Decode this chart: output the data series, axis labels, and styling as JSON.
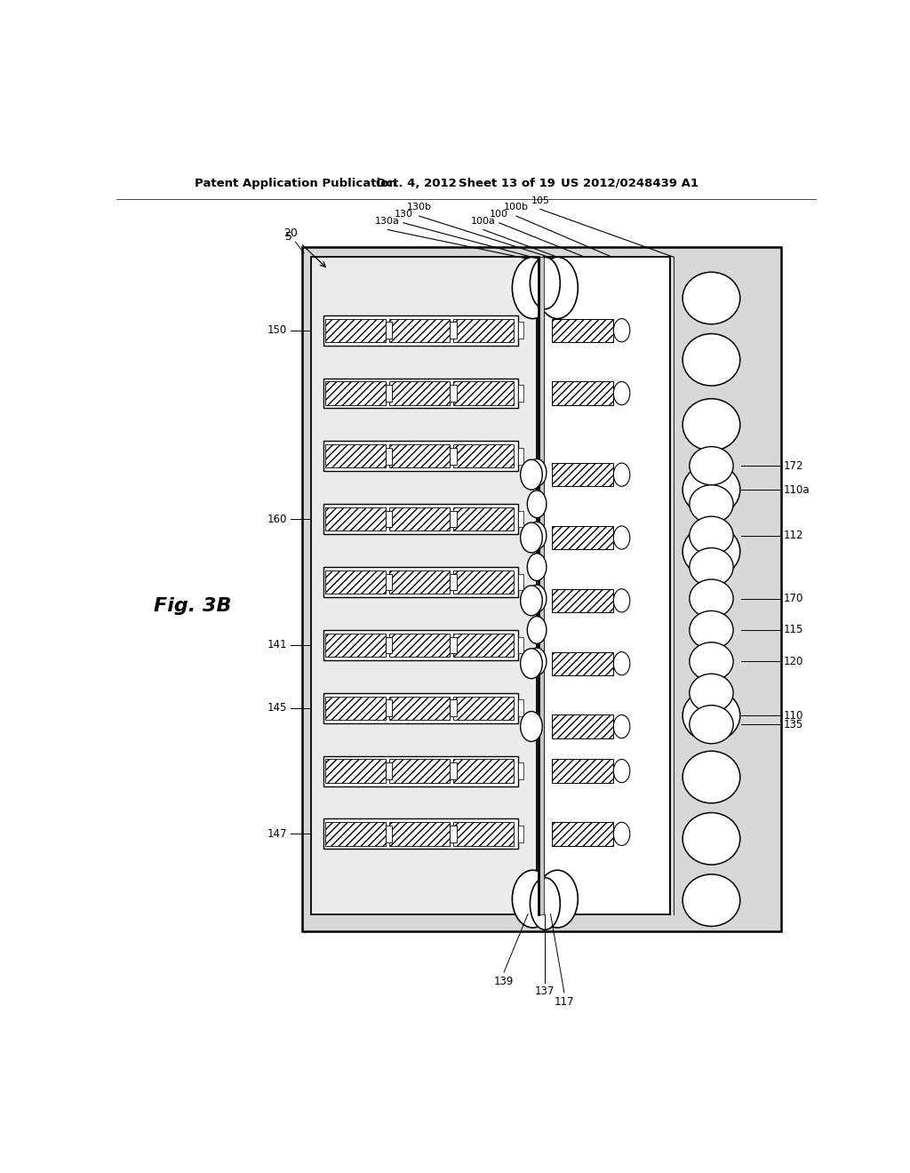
{
  "bg_color": "#ffffff",
  "header_left": "Patent Application Publication",
  "header_mid1": "Oct. 4, 2012",
  "header_mid2": "Sheet 13 of 19",
  "header_right": "US 2012/0248439 A1",
  "fig_label": "Fig. 3B",
  "stipple_color": "#cccccc",
  "light_gray": "#e0e0e0",
  "white": "#ffffff",
  "black": "#000000"
}
